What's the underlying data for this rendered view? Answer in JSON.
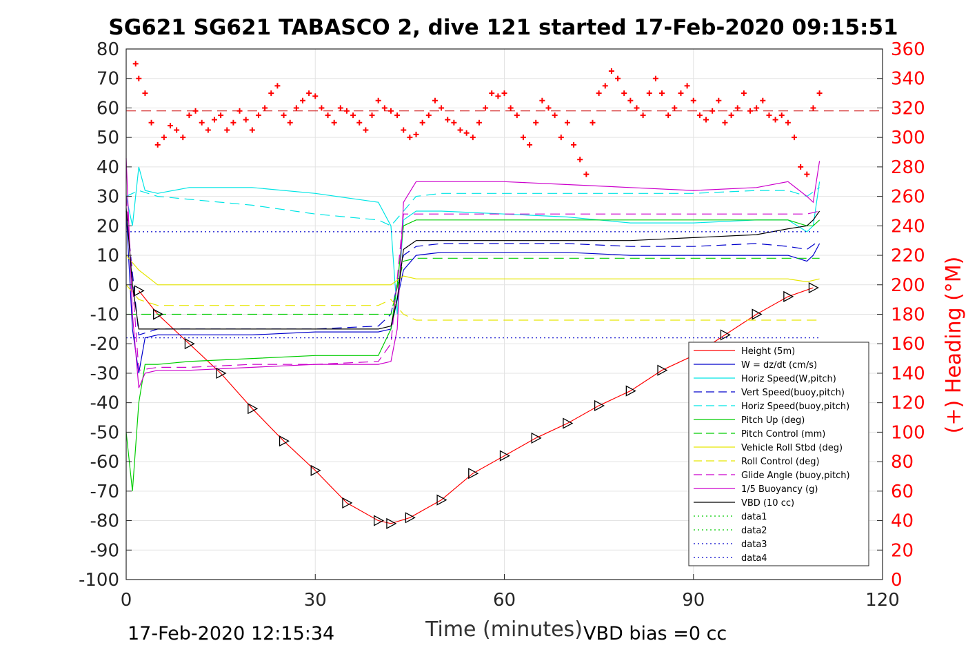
{
  "chart_data": {
    "type": "line",
    "title": "SG621 SG621 TABASCO 2, dive 121 started 17-Feb-2020 09:15:51",
    "xlabel": "Time (minutes)",
    "ylabel_right": "(+) Heading (°M)",
    "footer_left": "17-Feb-2020 12:15:34",
    "footer_right": "VBD bias =0 cc",
    "xlim": [
      0,
      120
    ],
    "ylim": [
      -100,
      80
    ],
    "y2lim": [
      0,
      360
    ],
    "x_ticks": [
      "0",
      "30",
      "60",
      "90",
      "120"
    ],
    "y_ticks": [
      "80",
      "70",
      "60",
      "50",
      "40",
      "30",
      "20",
      "10",
      "0",
      "-10",
      "-20",
      "-30",
      "-40",
      "-50",
      "-60",
      "-70",
      "-80",
      "-90",
      "-100"
    ],
    "y2_ticks": [
      "360",
      "340",
      "320",
      "300",
      "280",
      "260",
      "240",
      "220",
      "200",
      "180",
      "160",
      "140",
      "120",
      "100",
      "80",
      "60",
      "40",
      "20",
      "0"
    ],
    "grid": true,
    "legend_position": "right-middle",
    "series": [
      {
        "name": "Height (5m)",
        "color": "#ff0000",
        "style": "solid",
        "x": [
          2,
          5,
          10,
          15,
          20,
          25,
          30,
          35,
          40,
          42,
          45,
          50,
          55,
          60,
          65,
          70,
          75,
          80,
          85,
          90,
          95,
          100,
          105,
          109
        ],
        "y": [
          -2,
          -10,
          -20,
          -30,
          -42,
          -53,
          -63,
          -74,
          -80,
          -81,
          -79,
          -73,
          -64,
          -58,
          -52,
          -47,
          -41,
          -36,
          -29,
          -24,
          -17,
          -10,
          -4,
          -1
        ]
      },
      {
        "name": "W = dz/dt (cm/s)",
        "color": "#0000cc",
        "style": "solid",
        "x": [
          0,
          1,
          2,
          3,
          5,
          10,
          20,
          30,
          40,
          42,
          43,
          44,
          46,
          50,
          60,
          70,
          80,
          90,
          100,
          105,
          108,
          109,
          110
        ],
        "y": [
          25,
          -15,
          -30,
          -18,
          -17,
          -17,
          -17,
          -16,
          -16,
          -15,
          -5,
          5,
          10,
          11,
          11,
          11,
          10,
          10,
          10,
          10,
          8,
          10,
          14
        ]
      },
      {
        "name": "Horiz Speed(W,pitch)",
        "color": "#00e5e5",
        "style": "solid",
        "x": [
          0,
          1,
          2,
          3,
          5,
          10,
          20,
          30,
          40,
          42,
          43,
          44,
          46,
          50,
          60,
          70,
          80,
          90,
          100,
          105,
          108,
          109,
          110
        ],
        "y": [
          30,
          20,
          40,
          32,
          31,
          33,
          33,
          31,
          28,
          20,
          -10,
          22,
          25,
          25,
          24,
          23,
          21,
          21,
          22,
          22,
          18,
          20,
          35
        ]
      },
      {
        "name": "Vert Speed(buoy,pitch)",
        "color": "#0000cc",
        "style": "dashed",
        "x": [
          0,
          2,
          5,
          10,
          20,
          30,
          40,
          42,
          44,
          46,
          50,
          60,
          70,
          80,
          90,
          100,
          105,
          108,
          110
        ],
        "y": [
          25,
          -17,
          -15,
          -15,
          -15,
          -15,
          -14,
          -10,
          10,
          13,
          14,
          14,
          14,
          13,
          13,
          14,
          13,
          12,
          15
        ]
      },
      {
        "name": "Horiz Speed(buoy,pitch)",
        "color": "#00e5e5",
        "style": "dashed",
        "x": [
          0,
          2,
          5,
          10,
          20,
          30,
          40,
          42,
          44,
          46,
          50,
          60,
          70,
          80,
          90,
          100,
          105,
          108,
          110
        ],
        "y": [
          30,
          32,
          30,
          29,
          27,
          24,
          22,
          20,
          25,
          30,
          31,
          31,
          31,
          31,
          31,
          32,
          32,
          30,
          33
        ]
      },
      {
        "name": "Pitch Up (deg)",
        "color": "#00cc00",
        "style": "solid",
        "x": [
          0,
          1,
          2,
          3,
          5,
          10,
          20,
          30,
          40,
          42,
          43,
          44,
          46,
          50,
          60,
          70,
          80,
          90,
          100,
          105,
          108,
          109,
          110
        ],
        "y": [
          -50,
          -70,
          -40,
          -27,
          -27,
          -26,
          -25,
          -24,
          -24,
          -15,
          0,
          20,
          22,
          22,
          22,
          22,
          22,
          22,
          22,
          22,
          20,
          20,
          22
        ]
      },
      {
        "name": "Pitch Control (mm)",
        "color": "#00cc00",
        "style": "dashed",
        "x": [
          0,
          2,
          5,
          10,
          20,
          30,
          40,
          42,
          44,
          46,
          50,
          60,
          70,
          80,
          90,
          100,
          105,
          108,
          110
        ],
        "y": [
          -10,
          -10,
          -10,
          -10,
          -10,
          -10,
          -10,
          -10,
          8,
          9,
          9,
          9,
          9,
          9,
          9,
          9,
          9,
          9,
          9
        ]
      },
      {
        "name": "Vehicle Roll Stbd (deg)",
        "color": "#e6e600",
        "style": "solid",
        "x": [
          0,
          2,
          5,
          10,
          20,
          30,
          40,
          42,
          44,
          46,
          50,
          60,
          70,
          80,
          90,
          100,
          105,
          108,
          110
        ],
        "y": [
          10,
          5,
          0,
          0,
          0,
          0,
          0,
          0,
          3,
          2,
          2,
          2,
          2,
          2,
          2,
          2,
          2,
          1,
          2
        ]
      },
      {
        "name": "Roll Control (deg)",
        "color": "#e6e600",
        "style": "dashed",
        "x": [
          0,
          2,
          5,
          10,
          20,
          30,
          40,
          42,
          44,
          46,
          50,
          60,
          70,
          80,
          90,
          100,
          105,
          108,
          110
        ],
        "y": [
          0,
          -5,
          -7,
          -7,
          -7,
          -7,
          -7,
          -5,
          -10,
          -12,
          -12,
          -12,
          -12,
          -12,
          -12,
          -12,
          -12,
          -12,
          -12
        ]
      },
      {
        "name": "Glide Angle (buoy,pitch)",
        "color": "#cc00cc",
        "style": "dashed",
        "x": [
          0,
          2,
          5,
          10,
          20,
          30,
          40,
          42,
          44,
          46,
          50,
          60,
          70,
          80,
          90,
          100,
          105,
          108,
          110
        ],
        "y": [
          30,
          -29,
          -28,
          -28,
          -27,
          -27,
          -26,
          -20,
          24,
          24,
          24,
          24,
          24,
          24,
          24,
          24,
          24,
          24,
          25
        ]
      },
      {
        "name": "1/5 Buoyancy (g)",
        "color": "#cc00cc",
        "style": "solid",
        "x": [
          0,
          1,
          2,
          3,
          5,
          10,
          20,
          30,
          40,
          42,
          43,
          44,
          46,
          50,
          60,
          70,
          80,
          90,
          100,
          105,
          108,
          109,
          110
        ],
        "y": [
          43,
          -10,
          -35,
          -30,
          -29,
          -29,
          -28,
          -27,
          -27,
          -26,
          -15,
          28,
          35,
          35,
          35,
          34,
          33,
          32,
          33,
          35,
          30,
          28,
          42
        ]
      },
      {
        "name": "VBD (10 cc)",
        "color": "#000000",
        "style": "solid",
        "x": [
          0,
          1,
          2,
          3,
          5,
          10,
          20,
          30,
          40,
          42,
          43,
          44,
          46,
          50,
          60,
          70,
          80,
          90,
          100,
          105,
          108,
          109,
          110
        ],
        "y": [
          26,
          0,
          -15,
          -15,
          -15,
          -15,
          -15,
          -15,
          -15,
          -14,
          -5,
          12,
          15,
          15,
          15,
          15,
          15,
          16,
          17,
          19,
          20,
          22,
          25
        ]
      },
      {
        "name": "data1",
        "color": "#00cc00",
        "style": "dotted",
        "x": [],
        "y": []
      },
      {
        "name": "data2",
        "color": "#00cc00",
        "style": "dotted",
        "x": [],
        "y": []
      },
      {
        "name": "data3",
        "color": "#0000cc",
        "style": "dotted",
        "x": [
          0,
          110
        ],
        "y": [
          18,
          18
        ]
      },
      {
        "name": "data4",
        "color": "#0000cc",
        "style": "dotted",
        "x": [
          0,
          110
        ],
        "y": [
          -18,
          -18
        ]
      }
    ],
    "heading_series": {
      "name": "Heading",
      "color": "#ff0000",
      "marker": "+",
      "axis": "right",
      "mean": 318,
      "x": [
        1.5,
        2,
        3,
        4,
        5,
        6,
        7,
        8,
        9,
        10,
        11,
        12,
        13,
        14,
        15,
        16,
        17,
        18,
        19,
        20,
        21,
        22,
        23,
        24,
        25,
        26,
        27,
        28,
        29,
        30,
        31,
        32,
        33,
        34,
        35,
        36,
        37,
        38,
        39,
        40,
        41,
        42,
        43,
        44,
        45,
        46,
        47,
        48,
        49,
        50,
        51,
        52,
        53,
        54,
        55,
        56,
        57,
        58,
        59,
        60,
        61,
        62,
        63,
        64,
        65,
        66,
        67,
        68,
        69,
        70,
        71,
        72,
        73,
        74,
        75,
        76,
        77,
        78,
        79,
        80,
        81,
        82,
        83,
        84,
        85,
        86,
        87,
        88,
        89,
        90,
        91,
        92,
        93,
        94,
        95,
        96,
        97,
        98,
        99,
        100,
        101,
        102,
        103,
        104,
        105,
        106,
        107,
        108,
        109,
        110
      ],
      "y": [
        350,
        340,
        330,
        310,
        295,
        300,
        308,
        305,
        300,
        315,
        318,
        310,
        305,
        312,
        315,
        305,
        310,
        318,
        312,
        305,
        315,
        320,
        330,
        335,
        315,
        310,
        320,
        325,
        330,
        328,
        320,
        315,
        310,
        320,
        318,
        315,
        310,
        305,
        315,
        325,
        320,
        318,
        315,
        305,
        300,
        302,
        310,
        315,
        325,
        320,
        312,
        310,
        305,
        303,
        300,
        310,
        320,
        330,
        328,
        330,
        320,
        315,
        300,
        295,
        310,
        325,
        320,
        315,
        300,
        310,
        295,
        285,
        275,
        310,
        330,
        335,
        345,
        340,
        330,
        325,
        320,
        315,
        330,
        340,
        330,
        315,
        320,
        330,
        335,
        325,
        315,
        312,
        318,
        325,
        310,
        315,
        320,
        330,
        318,
        320,
        325,
        315,
        312,
        315,
        310,
        300,
        280,
        275,
        320,
        330
      ]
    }
  }
}
